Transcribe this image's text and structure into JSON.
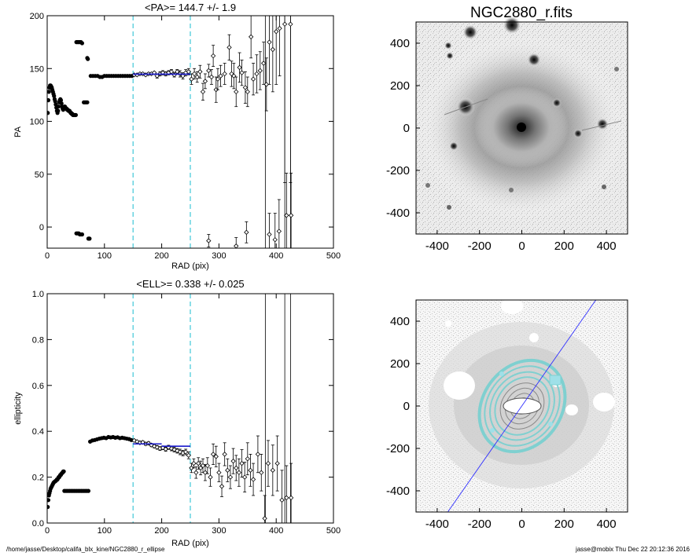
{
  "footer": {
    "path": "/home/jasse/Desktop/califa_blx_kine/NGC2880_r_ellipse",
    "stamp": "jasse@mobix  Thu Dec 22 20:12:36 2016"
  },
  "chart_data": [
    {
      "type": "scatter",
      "title": "<PA>= 144.7 +/-   1.9",
      "xlabel": "RAD (pix)",
      "ylabel": "PA",
      "xlim": [
        0,
        500
      ],
      "ylim": [
        -20,
        200
      ],
      "xticks": [
        0,
        100,
        200,
        300,
        400,
        500
      ],
      "yticks": [
        0,
        50,
        100,
        150,
        200
      ],
      "fit_range": [
        150,
        250
      ],
      "fit_value": 144.7,
      "fit_error": 1.9,
      "dense_points": [
        [
          1,
          108
        ],
        [
          2,
          120
        ],
        [
          3,
          128
        ],
        [
          4,
          132
        ],
        [
          5,
          134
        ],
        [
          6,
          134
        ],
        [
          7,
          133
        ],
        [
          8,
          132
        ],
        [
          9,
          130
        ],
        [
          10,
          128
        ],
        [
          11,
          126
        ],
        [
          12,
          124
        ],
        [
          13,
          121
        ],
        [
          14,
          119
        ],
        [
          15,
          116
        ],
        [
          16,
          113
        ],
        [
          17,
          110
        ],
        [
          18,
          108
        ],
        [
          19,
          110
        ],
        [
          20,
          114
        ],
        [
          21,
          118
        ],
        [
          22,
          120
        ],
        [
          23,
          121
        ],
        [
          24,
          120
        ],
        [
          25,
          117
        ],
        [
          26,
          114
        ],
        [
          27,
          112
        ],
        [
          28,
          111
        ],
        [
          29,
          112
        ],
        [
          30,
          114
        ],
        [
          31,
          114
        ],
        [
          32,
          113
        ],
        [
          33,
          112
        ],
        [
          34,
          112
        ],
        [
          35,
          111
        ],
        [
          36,
          111
        ],
        [
          37,
          110
        ],
        [
          38,
          110
        ],
        [
          39,
          110
        ],
        [
          40,
          109
        ],
        [
          41,
          108
        ],
        [
          42,
          108
        ],
        [
          43,
          107
        ],
        [
          44,
          107
        ],
        [
          45,
          106
        ],
        [
          46,
          106
        ],
        [
          47,
          106
        ],
        [
          48,
          106
        ],
        [
          49,
          106
        ],
        [
          50,
          106
        ],
        [
          51,
          -6
        ],
        [
          53,
          -6
        ],
        [
          55,
          -6
        ],
        [
          57,
          -7
        ],
        [
          59,
          -7
        ],
        [
          61,
          -7
        ],
        [
          51,
          175
        ],
        [
          53,
          175
        ],
        [
          55,
          175
        ],
        [
          57,
          175
        ],
        [
          59,
          175
        ],
        [
          61,
          174
        ],
        [
          64,
          118
        ],
        [
          66,
          118
        ],
        [
          68,
          118
        ],
        [
          70,
          118
        ],
        [
          70,
          160
        ],
        [
          71,
          159
        ],
        [
          72,
          -11
        ],
        [
          73,
          -11
        ],
        [
          74,
          -11
        ],
        [
          76,
          143
        ],
        [
          80,
          143
        ],
        [
          84,
          143
        ],
        [
          88,
          143
        ],
        [
          92,
          142
        ],
        [
          96,
          142
        ],
        [
          100,
          143
        ],
        [
          104,
          143
        ],
        [
          108,
          143
        ],
        [
          112,
          143
        ],
        [
          116,
          143
        ],
        [
          120,
          143
        ],
        [
          124,
          143
        ],
        [
          128,
          143
        ],
        [
          132,
          143
        ],
        [
          136,
          143
        ],
        [
          140,
          143
        ],
        [
          144,
          143
        ],
        [
          148,
          143
        ]
      ],
      "error_points": [
        [
          152,
          144,
          1
        ],
        [
          157,
          144,
          1
        ],
        [
          162,
          145,
          1
        ],
        [
          167,
          145,
          1
        ],
        [
          172,
          144,
          1
        ],
        [
          177,
          145,
          1
        ],
        [
          182,
          145,
          1
        ],
        [
          187,
          146,
          1
        ],
        [
          192,
          143,
          2
        ],
        [
          197,
          145,
          2
        ],
        [
          202,
          146,
          2
        ],
        [
          207,
          145,
          2
        ],
        [
          212,
          146,
          2
        ],
        [
          217,
          147,
          2
        ],
        [
          222,
          144,
          2
        ],
        [
          227,
          147,
          2
        ],
        [
          232,
          145,
          3
        ],
        [
          237,
          143,
          3
        ],
        [
          242,
          146,
          3
        ],
        [
          247,
          147,
          3
        ],
        [
          252,
          140,
          5
        ],
        [
          257,
          145,
          5
        ],
        [
          262,
          142,
          5
        ],
        [
          267,
          147,
          6
        ],
        [
          272,
          128,
          8
        ],
        [
          276,
          138,
          7
        ],
        [
          282,
          148,
          6
        ],
        [
          287,
          142,
          7
        ],
        [
          290,
          162,
          10
        ],
        [
          295,
          130,
          12
        ],
        [
          298,
          140,
          10
        ],
        [
          303,
          143,
          10
        ],
        [
          310,
          145,
          10
        ],
        [
          318,
          170,
          12
        ],
        [
          322,
          145,
          12
        ],
        [
          326,
          143,
          12
        ],
        [
          330,
          128,
          14
        ],
        [
          336,
          151,
          14
        ],
        [
          340,
          146,
          12
        ],
        [
          346,
          132,
          15
        ],
        [
          350,
          128,
          14
        ],
        [
          356,
          180,
          20
        ],
        [
          360,
          140,
          15
        ],
        [
          366,
          145,
          18
        ],
        [
          372,
          148,
          18
        ],
        [
          378,
          155,
          20
        ],
        [
          383,
          135,
          25
        ],
        [
          388,
          175,
          40
        ],
        [
          394,
          168,
          40
        ],
        [
          400,
          185,
          50
        ],
        [
          406,
          188,
          45
        ],
        [
          415,
          192,
          150
        ],
        [
          425,
          192,
          150
        ],
        [
          282,
          -13,
          6
        ],
        [
          330,
          -18,
          8
        ],
        [
          348,
          -5,
          10
        ],
        [
          388,
          -7,
          20
        ],
        [
          398,
          -12,
          25
        ],
        [
          405,
          -4,
          30
        ],
        [
          418,
          11,
          40
        ],
        [
          426,
          11,
          40
        ]
      ],
      "vlines": [
        381,
        415,
        425
      ]
    },
    {
      "type": "scatter",
      "title": "<ELL>= 0.338 +/-  0.025",
      "xlabel": "RAD (pix)",
      "ylabel": "ellipticity",
      "xlim": [
        0,
        500
      ],
      "ylim": [
        0,
        1
      ],
      "xticks": [
        0,
        100,
        200,
        300,
        400,
        500
      ],
      "yticks": [
        0.0,
        0.2,
        0.4,
        0.6,
        0.8,
        1.0
      ],
      "fit_range": [
        150,
        250
      ],
      "fit_value": 0.338,
      "fit_error": 0.025,
      "fit_steps": [
        [
          150,
          200,
          0.345
        ],
        [
          200,
          250,
          0.335
        ]
      ],
      "dense_points": [
        [
          1,
          0.07
        ],
        [
          2,
          0.1
        ],
        [
          3,
          0.12
        ],
        [
          4,
          0.13
        ],
        [
          5,
          0.14
        ],
        [
          6,
          0.15
        ],
        [
          7,
          0.155
        ],
        [
          8,
          0.16
        ],
        [
          9,
          0.165
        ],
        [
          10,
          0.17
        ],
        [
          11,
          0.175
        ],
        [
          12,
          0.178
        ],
        [
          13,
          0.18
        ],
        [
          14,
          0.182
        ],
        [
          15,
          0.184
        ],
        [
          16,
          0.186
        ],
        [
          17,
          0.19
        ],
        [
          18,
          0.19
        ],
        [
          19,
          0.195
        ],
        [
          20,
          0.2
        ],
        [
          21,
          0.2
        ],
        [
          22,
          0.205
        ],
        [
          23,
          0.21
        ],
        [
          24,
          0.21
        ],
        [
          25,
          0.215
        ],
        [
          26,
          0.218
        ],
        [
          27,
          0.22
        ],
        [
          28,
          0.225
        ],
        [
          29,
          0.225
        ],
        [
          30,
          0.14
        ],
        [
          33,
          0.14
        ],
        [
          36,
          0.14
        ],
        [
          39,
          0.14
        ],
        [
          42,
          0.14
        ],
        [
          45,
          0.14
        ],
        [
          48,
          0.14
        ],
        [
          51,
          0.14
        ],
        [
          54,
          0.14
        ],
        [
          57,
          0.14
        ],
        [
          60,
          0.14
        ],
        [
          63,
          0.14
        ],
        [
          66,
          0.14
        ],
        [
          69,
          0.14
        ],
        [
          72,
          0.14
        ],
        [
          75,
          0.355
        ],
        [
          79,
          0.36
        ],
        [
          83,
          0.362
        ],
        [
          87,
          0.365
        ],
        [
          91,
          0.368
        ],
        [
          95,
          0.37
        ],
        [
          99,
          0.372
        ],
        [
          103,
          0.37
        ],
        [
          107,
          0.375
        ],
        [
          111,
          0.373
        ],
        [
          115,
          0.375
        ],
        [
          119,
          0.372
        ],
        [
          123,
          0.374
        ],
        [
          127,
          0.37
        ],
        [
          131,
          0.372
        ],
        [
          135,
          0.37
        ],
        [
          139,
          0.368
        ],
        [
          143,
          0.366
        ],
        [
          147,
          0.362
        ]
      ],
      "error_points": [
        [
          152,
          0.36,
          0.005
        ],
        [
          157,
          0.355,
          0.005
        ],
        [
          162,
          0.35,
          0.006
        ],
        [
          167,
          0.352,
          0.006
        ],
        [
          172,
          0.345,
          0.006
        ],
        [
          177,
          0.348,
          0.006
        ],
        [
          182,
          0.34,
          0.007
        ],
        [
          187,
          0.335,
          0.007
        ],
        [
          192,
          0.33,
          0.008
        ],
        [
          197,
          0.325,
          0.008
        ],
        [
          202,
          0.328,
          0.008
        ],
        [
          207,
          0.322,
          0.009
        ],
        [
          212,
          0.33,
          0.009
        ],
        [
          217,
          0.325,
          0.01
        ],
        [
          222,
          0.32,
          0.01
        ],
        [
          227,
          0.315,
          0.01
        ],
        [
          232,
          0.31,
          0.012
        ],
        [
          237,
          0.305,
          0.012
        ],
        [
          242,
          0.31,
          0.012
        ],
        [
          247,
          0.295,
          0.015
        ],
        [
          252,
          0.24,
          0.02
        ],
        [
          256,
          0.26,
          0.02
        ],
        [
          260,
          0.22,
          0.025
        ],
        [
          264,
          0.26,
          0.025
        ],
        [
          268,
          0.24,
          0.03
        ],
        [
          272,
          0.25,
          0.03
        ],
        [
          276,
          0.22,
          0.035
        ],
        [
          280,
          0.25,
          0.035
        ],
        [
          285,
          0.2,
          0.04
        ],
        [
          290,
          0.3,
          0.045
        ],
        [
          295,
          0.29,
          0.045
        ],
        [
          300,
          0.22,
          0.04
        ],
        [
          305,
          0.16,
          0.045
        ],
        [
          310,
          0.3,
          0.05
        ],
        [
          315,
          0.23,
          0.05
        ],
        [
          320,
          0.2,
          0.05
        ],
        [
          325,
          0.27,
          0.055
        ],
        [
          330,
          0.24,
          0.055
        ],
        [
          335,
          0.22,
          0.06
        ],
        [
          340,
          0.26,
          0.06
        ],
        [
          345,
          0.2,
          0.065
        ],
        [
          350,
          0.28,
          0.07
        ],
        [
          355,
          0.23,
          0.07
        ],
        [
          360,
          0.19,
          0.07
        ],
        [
          368,
          0.3,
          0.08
        ],
        [
          374,
          0.22,
          0.08
        ],
        [
          380,
          0.02,
          0.1
        ],
        [
          386,
          0.26,
          0.1
        ],
        [
          394,
          0.23,
          0.11
        ],
        [
          402,
          0.26,
          0.12
        ],
        [
          410,
          0.1,
          0.13
        ],
        [
          418,
          0.11,
          0.14
        ],
        [
          426,
          0.11,
          0.15
        ]
      ],
      "vlines": [
        381,
        415,
        425
      ]
    },
    {
      "type": "heatmap",
      "title": "NGC2880_r.fits",
      "xlim": [
        -500,
        500
      ],
      "ylim": [
        -500,
        500
      ],
      "xticks": [
        -400,
        -200,
        0,
        200,
        400
      ],
      "yticks": [
        -400,
        -200,
        0,
        200,
        400
      ],
      "colormap": "grey"
    },
    {
      "type": "heatmap",
      "title": "",
      "xlim": [
        -500,
        500
      ],
      "ylim": [
        -500,
        500
      ],
      "xticks": [
        -400,
        -200,
        0,
        200,
        400
      ],
      "yticks": [
        -400,
        -200,
        0,
        200,
        400
      ],
      "colormap": "grey",
      "position_angle_line": [
        [
          -350,
          -500
        ],
        [
          350,
          500
        ]
      ],
      "contour_color": "#7fd0d0",
      "line_color": "#3030ff"
    }
  ],
  "colors": {
    "fit_line": "#1a1acc",
    "fit_range": "#40c8d8",
    "points": "#000000"
  }
}
